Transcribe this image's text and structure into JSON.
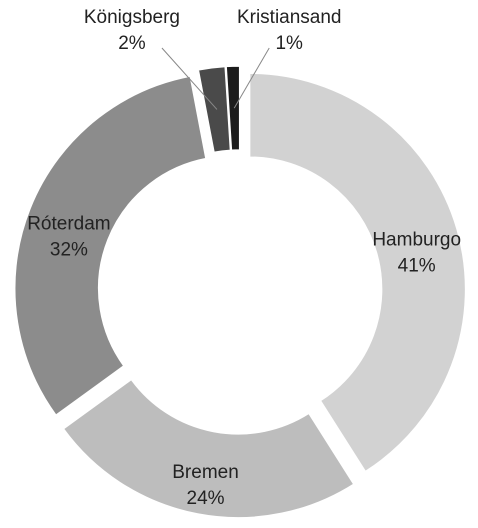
{
  "chart_data": {
    "type": "donut",
    "categories": [
      "Hamburgo",
      "Bremen",
      "Róterdam",
      "Königsberg",
      "Kristiansand"
    ],
    "values": [
      41,
      24,
      32,
      2,
      1
    ],
    "value_labels": [
      "41%",
      "24%",
      "32%",
      "2%",
      "1%"
    ],
    "colors": [
      "#d2d2d2",
      "#bdbdbd",
      "#8c8c8c",
      "#4a4a4a",
      "#1c1c1c"
    ]
  }
}
